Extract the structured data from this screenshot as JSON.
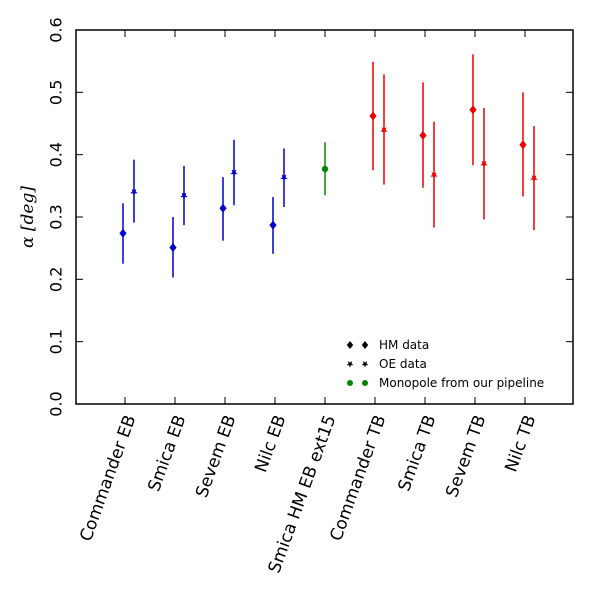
{
  "chart_data": {
    "type": "scatter",
    "ylabel": "α [deg]",
    "ylim": [
      0.0,
      0.6
    ],
    "yticks": [
      "0.0",
      "0.1",
      "0.2",
      "0.3",
      "0.4",
      "0.5",
      "0.6"
    ],
    "grid": false,
    "legend_position": "bottom-right",
    "categories": [
      "Commander EB",
      "Smica EB",
      "Sevem EB",
      "Nilc EB",
      "Smica HM EB ext15",
      "Commander TB",
      "Smica TB",
      "Sevem TB",
      "Nilc TB"
    ],
    "series": [
      {
        "name": "HM data",
        "marker": "diamond",
        "points": [
          {
            "category": "Commander EB",
            "y": 0.274,
            "ylow": 0.225,
            "yhigh": 0.322,
            "color": "#0000cc"
          },
          {
            "category": "Smica EB",
            "y": 0.251,
            "ylow": 0.203,
            "yhigh": 0.3,
            "color": "#0000cc"
          },
          {
            "category": "Sevem EB",
            "y": 0.314,
            "ylow": 0.262,
            "yhigh": 0.364,
            "color": "#0000cc"
          },
          {
            "category": "Nilc EB",
            "y": 0.287,
            "ylow": 0.241,
            "yhigh": 0.332,
            "color": "#0000cc"
          },
          {
            "category": "Commander TB",
            "y": 0.462,
            "ylow": 0.375,
            "yhigh": 0.549,
            "color": "#ee0000"
          },
          {
            "category": "Smica TB",
            "y": 0.431,
            "ylow": 0.347,
            "yhigh": 0.516,
            "color": "#ee0000"
          },
          {
            "category": "Sevem TB",
            "y": 0.472,
            "ylow": 0.383,
            "yhigh": 0.561,
            "color": "#ee0000"
          },
          {
            "category": "Nilc TB",
            "y": 0.416,
            "ylow": 0.333,
            "yhigh": 0.5,
            "color": "#ee0000"
          }
        ]
      },
      {
        "name": "OE data",
        "marker": "star",
        "points": [
          {
            "category": "Commander EB",
            "y": 0.34,
            "ylow": 0.291,
            "yhigh": 0.392,
            "color": "#0000cc"
          },
          {
            "category": "Smica EB",
            "y": 0.334,
            "ylow": 0.287,
            "yhigh": 0.382,
            "color": "#0000cc"
          },
          {
            "category": "Sevem EB",
            "y": 0.371,
            "ylow": 0.319,
            "yhigh": 0.424,
            "color": "#0000cc"
          },
          {
            "category": "Nilc EB",
            "y": 0.363,
            "ylow": 0.316,
            "yhigh": 0.41,
            "color": "#0000cc"
          },
          {
            "category": "Commander TB",
            "y": 0.439,
            "ylow": 0.352,
            "yhigh": 0.529,
            "color": "#ee0000"
          },
          {
            "category": "Smica TB",
            "y": 0.367,
            "ylow": 0.283,
            "yhigh": 0.453,
            "color": "#ee0000"
          },
          {
            "category": "Sevem TB",
            "y": 0.385,
            "ylow": 0.296,
            "yhigh": 0.475,
            "color": "#ee0000"
          },
          {
            "category": "Nilc TB",
            "y": 0.362,
            "ylow": 0.279,
            "yhigh": 0.446,
            "color": "#ee0000"
          }
        ]
      },
      {
        "name": "Monopole from our pipeline",
        "marker": "circle",
        "points": [
          {
            "category": "Smica HM EB ext15",
            "y": 0.377,
            "ylow": 0.335,
            "yhigh": 0.42,
            "color": "#008800"
          }
        ]
      }
    ],
    "legend": [
      {
        "label": "HM data",
        "marker": "diamond",
        "color": "#000000"
      },
      {
        "label": "OE data",
        "marker": "star",
        "color": "#000000"
      },
      {
        "label": "Monopole from our pipeline",
        "marker": "circle",
        "color": "#008800"
      }
    ]
  }
}
